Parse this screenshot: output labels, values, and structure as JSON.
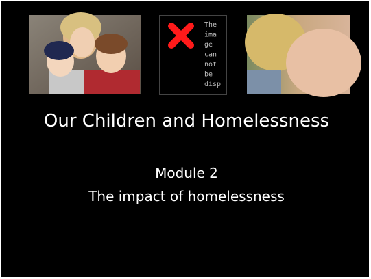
{
  "slide": {
    "title": "Our Children and Homelessness",
    "subtitle_lines": [
      "Module 2",
      "The impact of homelessness"
    ]
  },
  "broken_image": {
    "text_lines": [
      "The",
      "ima",
      "ge",
      "can",
      "not",
      "be",
      "disp"
    ]
  }
}
